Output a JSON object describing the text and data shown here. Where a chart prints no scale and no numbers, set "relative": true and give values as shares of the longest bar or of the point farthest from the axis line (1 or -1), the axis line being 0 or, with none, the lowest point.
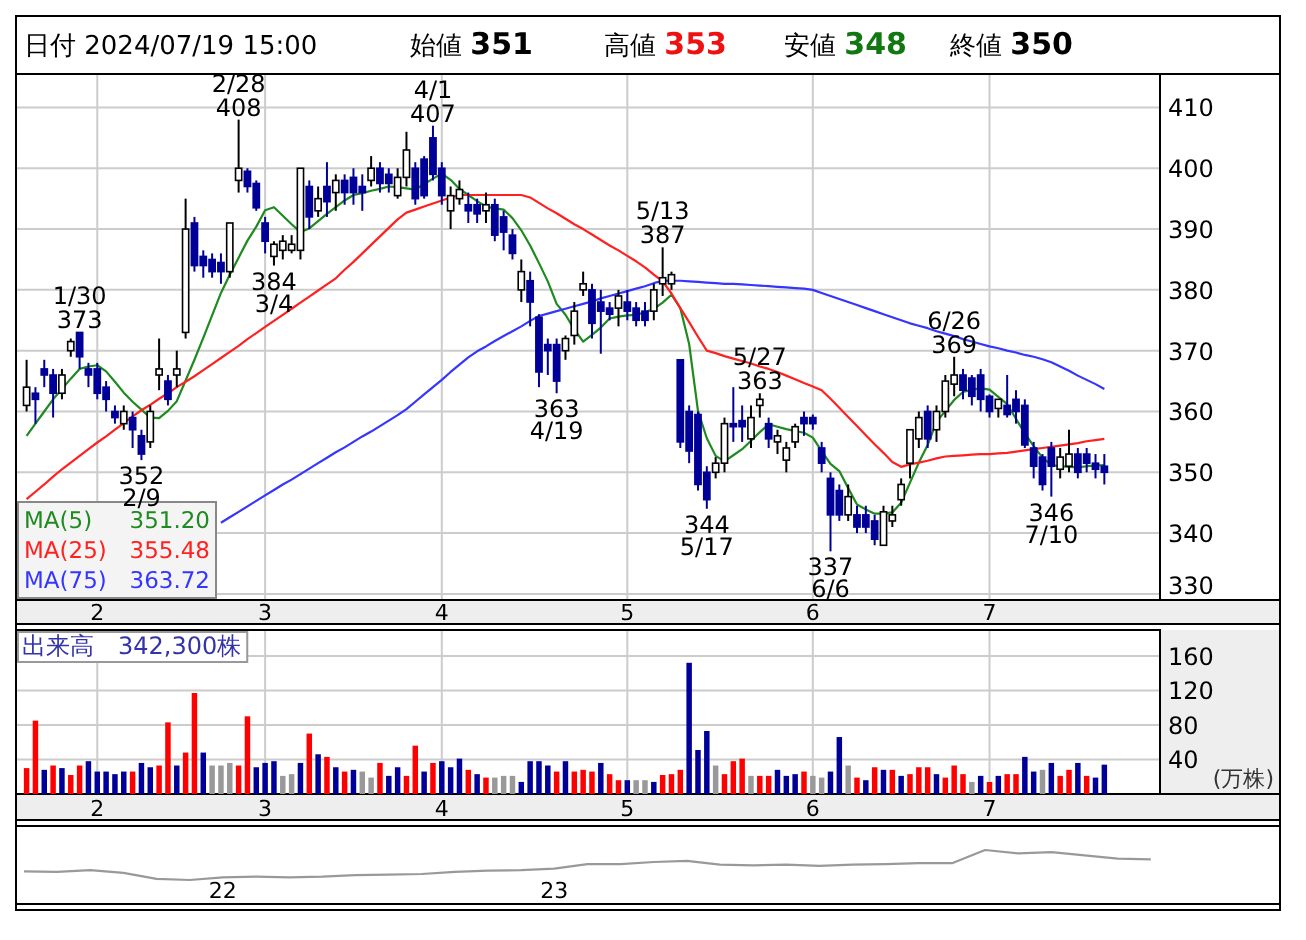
{
  "chart_data": [
    {
      "type": "candlestick",
      "categories": [
        null,
        null,
        null,
        null,
        null,
        null,
        null,
        null,
        "2",
        null,
        null,
        null,
        null,
        null,
        null,
        null,
        null,
        null,
        null,
        null,
        null,
        null,
        null,
        null,
        null,
        null,
        null,
        "3",
        null,
        null,
        null,
        null,
        null,
        null,
        null,
        null,
        null,
        null,
        null,
        null,
        null,
        null,
        null,
        null,
        null,
        null,
        null,
        "4",
        null,
        null,
        null,
        null,
        null,
        null,
        null,
        null,
        null,
        null,
        null,
        null,
        null,
        null,
        null,
        null,
        null,
        null,
        null,
        null,
        "5",
        null,
        null,
        null,
        null,
        null,
        null,
        null,
        null,
        null,
        null,
        null,
        null,
        null,
        null,
        null,
        null,
        null,
        null,
        null,
        null,
        "6",
        null,
        null,
        null,
        null,
        null,
        null,
        null,
        null,
        null,
        null,
        null,
        null,
        null,
        null,
        null,
        null,
        null,
        null,
        null,
        "7",
        null,
        null,
        null,
        null,
        null,
        null,
        null,
        null,
        null,
        null,
        null,
        null,
        null
      ],
      "ohlc": [
        [
          361,
          368.5,
          360,
          364
        ],
        [
          363,
          364,
          358,
          362
        ],
        [
          367,
          368.5,
          364,
          366
        ],
        [
          366,
          367,
          359,
          363
        ],
        [
          363,
          367,
          362,
          366
        ],
        [
          370,
          372,
          369,
          371.5
        ],
        [
          373,
          373,
          367,
          369
        ],
        [
          367,
          368,
          364,
          366
        ],
        [
          367,
          368,
          362,
          363
        ],
        [
          364,
          365,
          360,
          362
        ],
        [
          360,
          361,
          358,
          359
        ],
        [
          358,
          361,
          357,
          360
        ],
        [
          359,
          360,
          354,
          357
        ],
        [
          356,
          357,
          352,
          353
        ],
        [
          355,
          361,
          354,
          360
        ],
        [
          366,
          372,
          363.5,
          367
        ],
        [
          365,
          366,
          361,
          362
        ],
        [
          366,
          370,
          364,
          367
        ],
        [
          373,
          395,
          372,
          390
        ],
        [
          391,
          392,
          383,
          384
        ],
        [
          385.5,
          386.5,
          382,
          384
        ],
        [
          385,
          386,
          382,
          383
        ],
        [
          384.5,
          386,
          381,
          383
        ],
        [
          383,
          391,
          382,
          391
        ],
        [
          398,
          408,
          396,
          400
        ],
        [
          399.5,
          400,
          396,
          397
        ],
        [
          397.5,
          398,
          393,
          393.5
        ],
        [
          391,
          392,
          386,
          388
        ],
        [
          385.5,
          388,
          384,
          387.5
        ],
        [
          386.5,
          389,
          385,
          388
        ],
        [
          386.5,
          389,
          386,
          387.5
        ],
        [
          386.5,
          400,
          385,
          400
        ],
        [
          397,
          398,
          390,
          392
        ],
        [
          393,
          397,
          392,
          395
        ],
        [
          397,
          401,
          392,
          394.5
        ],
        [
          396,
          399,
          393,
          398
        ],
        [
          398,
          399,
          394,
          396
        ],
        [
          398.5,
          400,
          394,
          396
        ],
        [
          397,
          399,
          393,
          396
        ],
        [
          398,
          402,
          397,
          400
        ],
        [
          400,
          401,
          396,
          397.5
        ],
        [
          399,
          400,
          396,
          397.5
        ],
        [
          395.5,
          400,
          395,
          398.5
        ],
        [
          398.5,
          406,
          397,
          403
        ],
        [
          400,
          401,
          394,
          395
        ],
        [
          401.5,
          402,
          395,
          395.5
        ],
        [
          405,
          407,
          398,
          399
        ],
        [
          400,
          401,
          394,
          395.5
        ],
        [
          393,
          397,
          390,
          395.5
        ],
        [
          395,
          398,
          394,
          396.5
        ],
        [
          394,
          396,
          391,
          393
        ],
        [
          394,
          395,
          391,
          392.5
        ],
        [
          393,
          396,
          391,
          394
        ],
        [
          394,
          395,
          388,
          389
        ],
        [
          392,
          393,
          386.5,
          389.5
        ],
        [
          389,
          390,
          385,
          386
        ],
        [
          380,
          385,
          378,
          383
        ],
        [
          381.5,
          383,
          374,
          378
        ],
        [
          375.5,
          376,
          364,
          366.5
        ],
        [
          371,
          372,
          366,
          370
        ],
        [
          371,
          372,
          363,
          365
        ],
        [
          370,
          372.5,
          368.5,
          372
        ],
        [
          372.5,
          378,
          371,
          376.5
        ],
        [
          380,
          383,
          379,
          381
        ],
        [
          380,
          381,
          372,
          374.5
        ],
        [
          378,
          380,
          369.5,
          376.5
        ],
        [
          377,
          378,
          375,
          376
        ],
        [
          377,
          380,
          374,
          379
        ],
        [
          378,
          380,
          375,
          376.5
        ],
        [
          377,
          378,
          374,
          375
        ],
        [
          376.5,
          378,
          374,
          375
        ],
        [
          376.5,
          381,
          375,
          380
        ],
        [
          381,
          387,
          379,
          382
        ],
        [
          381,
          383,
          380,
          382.5
        ],
        [
          368.5,
          368.5,
          354,
          355
        ],
        [
          360,
          361,
          351.5,
          353.5
        ],
        [
          359.5,
          360,
          347,
          348
        ],
        [
          350,
          351,
          344,
          345.5
        ],
        [
          350,
          352.5,
          349,
          351.5
        ],
        [
          351.5,
          359,
          350,
          358
        ],
        [
          358,
          364,
          355,
          357.5
        ],
        [
          358.5,
          361,
          355,
          357.5
        ],
        [
          355.5,
          361,
          354,
          359
        ],
        [
          361,
          363,
          359,
          362
        ],
        [
          358,
          359,
          354,
          355.5
        ],
        [
          355,
          357,
          353,
          356
        ],
        [
          352,
          355,
          350,
          354
        ],
        [
          355,
          358,
          354,
          357.5
        ],
        [
          359,
          360,
          356,
          358
        ],
        [
          359,
          359.5,
          357,
          358
        ],
        [
          354,
          355,
          350,
          351.5
        ],
        [
          349,
          350,
          337,
          343
        ],
        [
          347,
          348,
          342,
          343
        ],
        [
          343,
          348,
          342,
          346
        ],
        [
          343,
          344.5,
          340,
          341
        ],
        [
          343,
          344.5,
          340,
          341
        ],
        [
          342,
          343,
          338,
          339
        ],
        [
          338,
          344.5,
          338,
          343.5
        ],
        [
          342,
          344.5,
          341,
          343
        ],
        [
          345.5,
          349,
          344.5,
          348
        ],
        [
          351.5,
          357,
          349,
          357
        ],
        [
          355.5,
          360,
          354,
          359
        ],
        [
          360,
          361,
          354,
          355.5
        ],
        [
          357,
          361,
          355,
          360
        ],
        [
          360,
          366,
          359,
          365
        ],
        [
          364.5,
          369,
          362.5,
          366
        ],
        [
          366,
          367,
          362,
          363.5
        ],
        [
          365.5,
          366,
          361,
          362.5
        ],
        [
          366,
          367,
          360,
          362
        ],
        [
          362.5,
          362.8,
          359,
          360
        ],
        [
          360.5,
          362,
          359,
          362
        ],
        [
          361,
          366,
          359,
          359.5
        ],
        [
          362,
          363.5,
          358,
          360
        ],
        [
          361,
          362,
          354,
          354.5
        ],
        [
          354,
          355,
          349,
          351
        ],
        [
          352.5,
          353,
          347,
          348
        ],
        [
          354,
          355,
          346,
          351
        ],
        [
          350.5,
          354,
          349,
          352.5
        ],
        [
          351,
          357,
          350,
          353
        ],
        [
          353,
          354,
          349,
          350
        ],
        [
          353,
          354,
          350,
          351.5
        ],
        [
          351.5,
          353,
          349,
          350.5
        ],
        [
          351,
          353,
          348,
          350
        ]
      ],
      "series": [
        {
          "type": "line",
          "name": "MA(5) 351.20",
          "color": "#1f8a1f",
          "values": [
            356,
            358.0,
            360.0,
            362.0,
            363.7,
            365.4,
            367.0,
            367.4,
            367.6,
            366.6,
            364.9,
            363.1,
            361.6,
            360.3,
            359.0,
            358.9,
            360.1,
            361.7,
            365.1,
            368.5,
            372.1,
            375.8,
            379.5,
            382.5,
            385.3,
            388.1,
            390.4,
            393.1,
            393.6,
            392.2,
            390.8,
            389.5,
            390.1,
            391.3,
            392.5,
            393.6,
            394.7,
            395.6,
            395.9,
            396.3,
            396.6,
            397.0,
            396.9,
            396.7,
            396.5,
            397.4,
            398.3,
            399.1,
            398.1,
            396.6,
            395.6,
            394.6,
            393.7,
            393.4,
            393.2,
            391.8,
            389.8,
            387.3,
            384.4,
            381.4,
            377.7,
            375.9,
            373.5,
            371.5,
            372.6,
            373.8,
            375.3,
            375.6,
            375.8,
            375.9,
            376.3,
            376.9,
            377.9,
            379.2,
            377.0,
            371.1,
            360.1,
            355.6,
            352.7,
            351.8,
            352.8,
            353.8,
            355.2,
            356.6,
            357.9,
            357.5,
            357.1,
            356.8,
            356.5,
            355.7,
            353.5,
            351.4,
            350.2,
            347.4,
            344.7,
            343.9,
            343.2,
            343.2,
            343.4,
            345.0,
            348.3,
            351.6,
            354.5,
            358.3,
            360.1,
            361.9,
            363.2,
            363.6,
            363.8,
            363.6,
            362.4,
            361.2,
            358.8,
            356.4,
            354.3,
            352.4,
            351.2,
            351.0,
            350.9,
            350.8,
            351.0,
            351.1,
            351.2
          ]
        },
        {
          "type": "line",
          "name": "MA(25) 355.48",
          "color": "#ff2020",
          "values": [
            345.6,
            346.8,
            348.0,
            349.3,
            350.5,
            351.6,
            352.7,
            353.8,
            354.9,
            355.9,
            357.0,
            358.1,
            359.2,
            360.2,
            361.1,
            362.1,
            363.0,
            364.0,
            364.9,
            365.8,
            366.8,
            367.8,
            368.8,
            369.8,
            370.8,
            371.9,
            372.9,
            373.9,
            374.9,
            375.9,
            376.9,
            377.9,
            378.9,
            379.9,
            380.9,
            381.9,
            383.3,
            384.6,
            386.0,
            387.4,
            388.8,
            390.2,
            391.6,
            392.7,
            393.2,
            393.7,
            394.2,
            394.7,
            395.2,
            395.6,
            395.6,
            395.6,
            395.6,
            395.6,
            395.6,
            395.6,
            395.6,
            395.2,
            394.3,
            393.4,
            392.6,
            391.7,
            390.8,
            390.0,
            389.1,
            388.2,
            387.3,
            386.5,
            385.6,
            384.7,
            383.7,
            382.5,
            381.4,
            379.4,
            377.0,
            374.7,
            372.3,
            370.0,
            369.6,
            369.1,
            368.7,
            368.3,
            367.9,
            367.4,
            367.0,
            366.5,
            365.9,
            365.3,
            364.7,
            364.1,
            363.5,
            362.1,
            360.6,
            359.1,
            357.6,
            356.1,
            354.6,
            353.2,
            351.7,
            350.9,
            351.3,
            351.6,
            351.9,
            352.3,
            352.6,
            352.7,
            352.8,
            352.9,
            353.0,
            353.0,
            353.1,
            353.2,
            353.4,
            353.6,
            353.8,
            354.0,
            354.2,
            354.4,
            354.6,
            354.8,
            355.1,
            355.3,
            355.5
          ]
        },
        {
          "type": "line",
          "name": "MA(75) 363.72",
          "color": "#3535ff",
          "values": [
            null,
            null,
            null,
            null,
            null,
            null,
            null,
            null,
            null,
            null,
            null,
            null,
            null,
            null,
            null,
            null,
            null,
            null,
            null,
            null,
            null,
            null,
            341.7,
            342.6,
            343.5,
            344.4,
            345.3,
            346.2,
            347.1,
            348.0,
            348.8,
            349.7,
            350.6,
            351.5,
            352.4,
            353.3,
            354.1,
            355.0,
            355.9,
            356.7,
            357.6,
            358.5,
            359.4,
            360.4,
            361.6,
            362.8,
            364.0,
            365.2,
            366.5,
            367.7,
            368.9,
            369.9,
            370.7,
            371.6,
            372.4,
            373.2,
            374.0,
            374.9,
            375.7,
            376.1,
            376.5,
            376.9,
            377.3,
            377.7,
            378.1,
            378.6,
            379.0,
            379.4,
            379.8,
            380.2,
            380.6,
            381.1,
            381.5,
            381.5,
            381.5,
            381.4,
            381.3,
            381.2,
            381.1,
            381.0,
            381.0,
            380.9,
            380.8,
            380.7,
            380.6,
            380.5,
            380.4,
            380.3,
            380.2,
            380.0,
            379.5,
            379.0,
            378.5,
            378.0,
            377.5,
            377.0,
            376.5,
            376.0,
            375.5,
            375.0,
            374.5,
            374.1,
            373.7,
            373.2,
            372.8,
            372.4,
            371.9,
            371.5,
            371.1,
            370.7,
            370.4,
            370.0,
            369.7,
            369.3,
            369.0,
            368.6,
            368.1,
            367.4,
            366.7,
            365.9,
            365.2,
            364.5,
            363.7
          ]
        }
      ],
      "ylim": [
        329,
        415.5
      ],
      "yticks": [
        330,
        340,
        350,
        360,
        370,
        380,
        390,
        400,
        410
      ],
      "grid": true,
      "annotations": [
        "日付 2024/07/19 15:00",
        "始値 351",
        "高値 353",
        "安値 348",
        "終値 350",
        {
          "text": "1/30\n373",
          "y": 373
        },
        {
          "text": "352\n2/9",
          "y": 352
        },
        {
          "text": "2/28\n408",
          "y": 408
        },
        {
          "text": "384\n3/4",
          "y": 384
        },
        {
          "text": "4/1\n407",
          "y": 407
        },
        {
          "text": "5/27\n363",
          "y": 363
        },
        {
          "text": "363\n4/19",
          "y": 363
        },
        {
          "text": "5/13\n387",
          "y": 387
        },
        {
          "text": "344\n5/17",
          "y": 344
        },
        {
          "text": "337\n6/6",
          "y": 337
        },
        {
          "text": "6/26\n369",
          "y": 369
        },
        {
          "text": "346\n7/10",
          "y": 346
        }
      ]
    },
    {
      "type": "bar",
      "title": "出来高　342,300株",
      "ylabel": "(万株)",
      "categories": [
        null,
        null,
        null,
        null,
        null,
        null,
        null,
        null,
        "2",
        null,
        null,
        null,
        null,
        null,
        null,
        null,
        null,
        null,
        null,
        null,
        null,
        null,
        null,
        null,
        null,
        null,
        null,
        "3",
        null,
        null,
        null,
        null,
        null,
        null,
        null,
        null,
        null,
        null,
        null,
        null,
        null,
        null,
        null,
        null,
        null,
        null,
        null,
        "4",
        null,
        null,
        null,
        null,
        null,
        null,
        null,
        null,
        null,
        null,
        null,
        null,
        null,
        null,
        null,
        null,
        null,
        null,
        null,
        null,
        "5",
        null,
        null,
        null,
        null,
        null,
        null,
        null,
        null,
        null,
        null,
        null,
        null,
        null,
        null,
        null,
        null,
        null,
        null,
        null,
        null,
        "6",
        null,
        null,
        null,
        null,
        null,
        null,
        null,
        null,
        null,
        null,
        null,
        null,
        null,
        null,
        null,
        null,
        null,
        null,
        null,
        "7",
        null,
        null,
        null,
        null,
        null,
        null,
        null,
        null,
        null,
        null,
        null,
        null,
        null
      ],
      "values": [
        30,
        85,
        28,
        33,
        30,
        22,
        33,
        38,
        26,
        26,
        23,
        26,
        26,
        36,
        31,
        33,
        83,
        33,
        48,
        117,
        48,
        33,
        33,
        36,
        33,
        90,
        31,
        36,
        38,
        21,
        23,
        36,
        70,
        46,
        43,
        31,
        26,
        28,
        26,
        19,
        36,
        21,
        31,
        21,
        56,
        26,
        36,
        38,
        31,
        41,
        28,
        23,
        19,
        19,
        21,
        21,
        14,
        38,
        38,
        33,
        26,
        38,
        26,
        28,
        26,
        36,
        23,
        16,
        16,
        16,
        16,
        14,
        22,
        23,
        28,
        152,
        51,
        73,
        33,
        23,
        38,
        41,
        21,
        21,
        21,
        28,
        21,
        23,
        26,
        21,
        19,
        26,
        66,
        33,
        19,
        16,
        31,
        28,
        28,
        21,
        23,
        31,
        31,
        23,
        19,
        33,
        23,
        14,
        21,
        14,
        21,
        23,
        23,
        43,
        26,
        28,
        36,
        21,
        28,
        36,
        21,
        19,
        34
      ],
      "colors": [
        "#ff0000",
        "#ff0000",
        "#000099",
        "#ff0000",
        "#000099",
        "#ff0000",
        "#ff0000",
        "#000099",
        "#000099",
        "#000099",
        "#000099",
        "#000099",
        "#ff0000",
        "#000099",
        "#000099",
        "#ff0000",
        "#ff0000",
        "#000099",
        "#ff0000",
        "#ff0000",
        "#000099",
        "#999999",
        "#999999",
        "#999999",
        "#ff0000",
        "#ff0000",
        "#000099",
        "#000099",
        "#000099",
        "#999999",
        "#999999",
        "#000099",
        "#ff0000",
        "#000099",
        "#ff0000",
        "#000099",
        "#ff0000",
        "#000099",
        "#999999",
        "#999999",
        "#ff0000",
        "#000099",
        "#000099",
        "#ff0000",
        "#ff0000",
        "#000099",
        "#ff0000",
        "#000099",
        "#000099",
        "#000099",
        "#ff0000",
        "#000099",
        "#ff0000",
        "#999999",
        "#999999",
        "#999999",
        "#000099",
        "#000099",
        "#000099",
        "#000099",
        "#ff0000",
        "#000099",
        "#ff0000",
        "#ff0000",
        "#ff0000",
        "#000099",
        "#ff0000",
        "#ff0000",
        "#000099",
        "#999999",
        "#999999",
        "#000099",
        "#ff0000",
        "#ff0000",
        "#ff0000",
        "#000099",
        "#000099",
        "#000099",
        "#999999",
        "#ff0000",
        "#ff0000",
        "#ff0000",
        "#999999",
        "#ff0000",
        "#ff0000",
        "#000099",
        "#000099",
        "#000099",
        "#ff0000",
        "#999999",
        "#999999",
        "#000099",
        "#000099",
        "#999999",
        "#ff0000",
        "#000099",
        "#ff0000",
        "#000099",
        "#ff0000",
        "#000099",
        "#ff0000",
        "#ff0000",
        "#ff0000",
        "#000099",
        "#ff0000",
        "#ff0000",
        "#ff0000",
        "#999999",
        "#000099",
        "#ff0000",
        "#000099",
        "#ff0000",
        "#ff0000",
        "#000099",
        "#000099",
        "#999999",
        "#000099",
        "#ff0000",
        "#ff0000",
        "#000099",
        "#ff0000",
        "#000099",
        "#000099"
      ],
      "ylim": [
        0,
        190
      ],
      "yticks": [
        40,
        80,
        120,
        160
      ],
      "grid": true
    },
    {
      "type": "line",
      "relative": true,
      "categories": [
        null,
        null,
        null,
        null,
        null,
        null,
        "22",
        null,
        null,
        null,
        null,
        null,
        null,
        null,
        null,
        null,
        "23",
        null,
        null,
        null,
        null,
        null,
        null,
        null,
        null,
        null,
        null,
        null,
        null,
        null,
        null,
        null,
        null,
        null,
        null
      ],
      "series": [
        {
          "color": "#999999",
          "values": [
            0.29,
            0.27,
            0.33,
            0.24,
            0.04,
            0,
            0.09,
            0.11,
            0.09,
            0.11,
            0.16,
            0.18,
            0.2,
            0.27,
            0.31,
            0.33,
            0.38,
            0.53,
            0.53,
            0.6,
            0.64,
            0.51,
            0.49,
            0.51,
            0.47,
            0.51,
            0.53,
            0.56,
            0.56,
            1,
            0.89,
            0.93,
            0.82,
            0.71,
            0.69
          ]
        }
      ],
      "tick_labels": "x"
    }
  ]
}
